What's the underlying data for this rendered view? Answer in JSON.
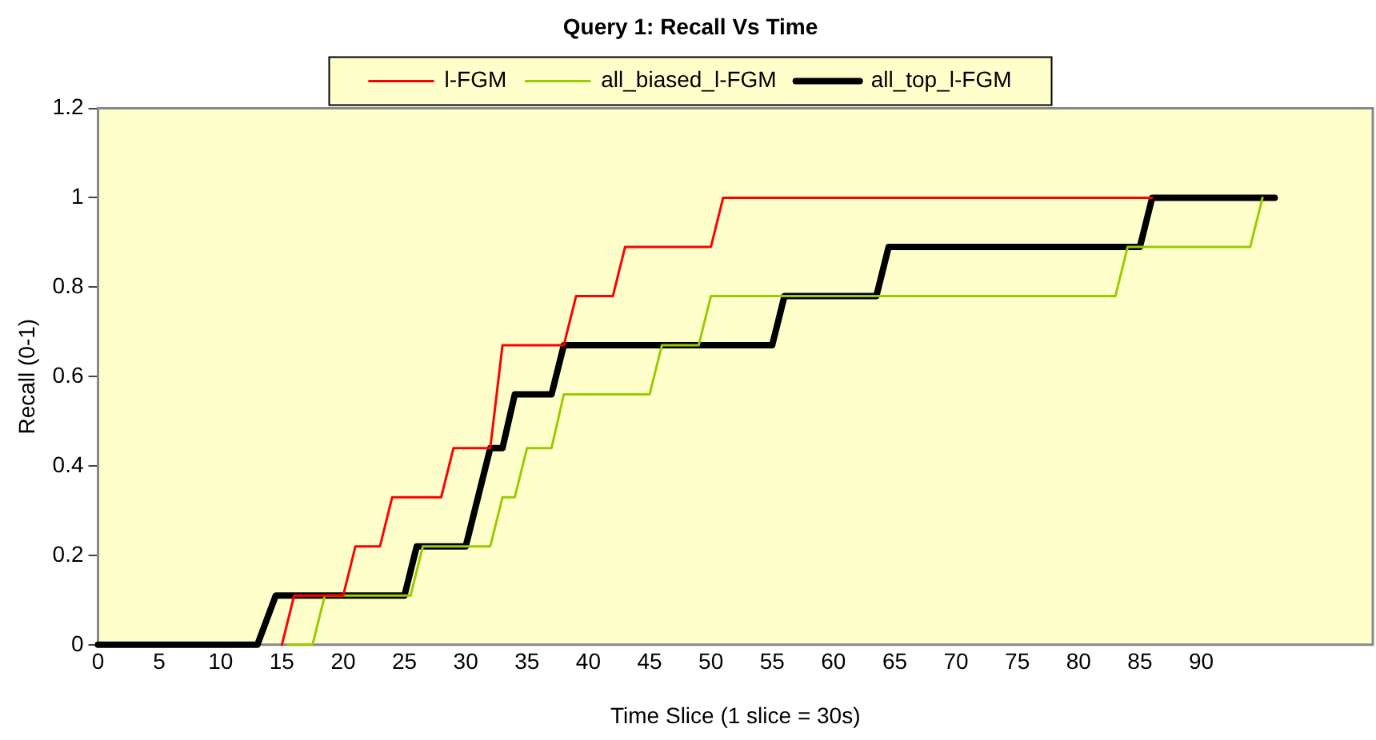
{
  "chart_data": {
    "type": "line",
    "title": "Query 1: Recall Vs Time",
    "xlabel": "Time Slice (1 slice = 30s)",
    "ylabel": "Recall (0-1)",
    "xlim": [
      0,
      104
    ],
    "xticks": [
      0,
      5,
      10,
      15,
      20,
      25,
      30,
      35,
      40,
      45,
      50,
      55,
      60,
      65,
      70,
      75,
      80,
      85,
      90
    ],
    "ylim": [
      0,
      1.2
    ],
    "yticks": [
      0,
      0.2,
      0.4,
      0.6,
      0.8,
      1,
      1.2
    ],
    "grid": false,
    "legend": "top",
    "marker": "none",
    "line_style": "solid",
    "series": [
      {
        "name": "l-FGM",
        "color": "#ff0000",
        "x": [
          15,
          16,
          20,
          21,
          23,
          24,
          28,
          29,
          32,
          33,
          38,
          39,
          42,
          43,
          50,
          51,
          86
        ],
        "values": [
          0,
          0.11,
          0.11,
          0.22,
          0.22,
          0.33,
          0.33,
          0.44,
          0.44,
          0.67,
          0.67,
          0.78,
          0.78,
          0.89,
          0.89,
          1,
          1
        ]
      },
      {
        "name": "all_biased_l-FGM",
        "color": "#99cc00",
        "x": [
          15.5,
          17.5,
          18.5,
          25.5,
          26.5,
          32,
          33,
          34,
          35,
          37,
          38,
          45,
          46,
          49,
          50,
          83,
          84,
          94,
          95
        ],
        "values": [
          0,
          0,
          0.11,
          0.11,
          0.22,
          0.22,
          0.33,
          0.33,
          0.44,
          0.44,
          0.56,
          0.56,
          0.67,
          0.67,
          0.78,
          0.78,
          0.89,
          0.89,
          1
        ]
      },
      {
        "name": "all_top_l-FGM",
        "color": "#000000",
        "x": [
          0,
          13,
          14.5,
          25,
          26,
          30,
          32,
          33,
          34,
          37,
          38,
          55,
          56,
          63.5,
          64.5,
          85,
          86,
          96
        ],
        "values": [
          0,
          0,
          0.11,
          0.11,
          0.22,
          0.22,
          0.44,
          0.44,
          0.56,
          0.56,
          0.67,
          0.67,
          0.78,
          0.78,
          0.89,
          0.89,
          1,
          1
        ]
      }
    ]
  }
}
